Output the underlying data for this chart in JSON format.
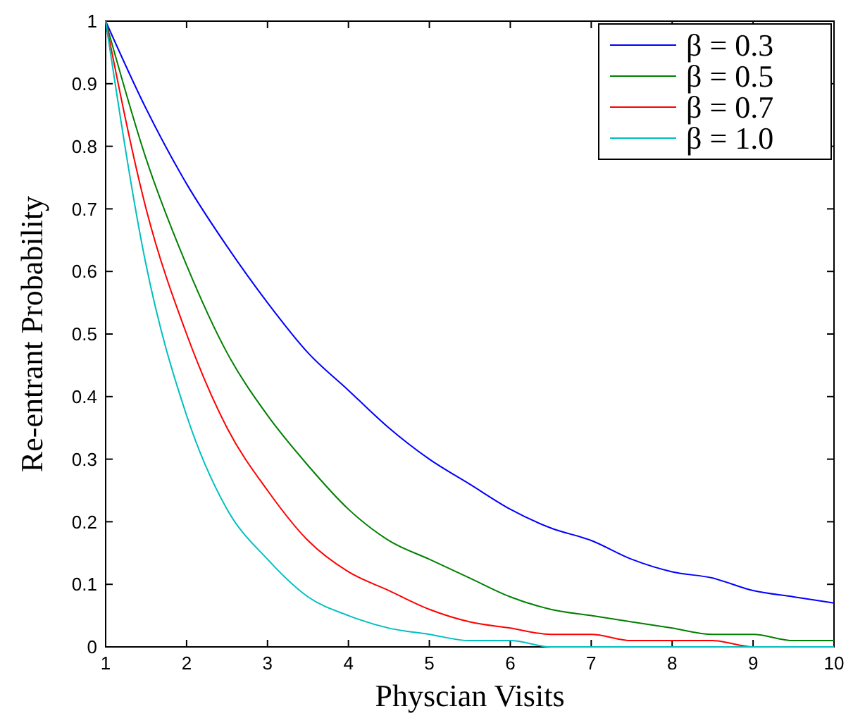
{
  "chart_data": {
    "type": "line",
    "xlabel": "Physcian Visits",
    "ylabel": "Re-entrant Probability",
    "x": [
      1,
      1.5,
      2,
      2.5,
      3,
      3.5,
      4,
      4.5,
      5,
      5.5,
      6,
      6.5,
      7,
      7.5,
      8,
      8.5,
      9,
      9.5,
      10
    ],
    "series": [
      {
        "name": "β = 0.3",
        "color": "#0000ff",
        "values": [
          1,
          0.86,
          0.74,
          0.64,
          0.55,
          0.47,
          0.41,
          0.35,
          0.3,
          0.26,
          0.22,
          0.19,
          0.17,
          0.14,
          0.12,
          0.11,
          0.09,
          0.08,
          0.07
        ]
      },
      {
        "name": "β = 0.5",
        "color": "#008000",
        "values": [
          1,
          0.78,
          0.61,
          0.47,
          0.37,
          0.29,
          0.22,
          0.17,
          0.14,
          0.11,
          0.08,
          0.06,
          0.05,
          0.04,
          0.03,
          0.02,
          0.02,
          0.01,
          0.01
        ]
      },
      {
        "name": "β = 0.7",
        "color": "#ff0000",
        "values": [
          1,
          0.7,
          0.5,
          0.35,
          0.25,
          0.17,
          0.12,
          0.09,
          0.06,
          0.04,
          0.03,
          0.02,
          0.02,
          0.01,
          0.01,
          0.01,
          0,
          0,
          0
        ]
      },
      {
        "name": "β = 1.0",
        "color": "#00bfbf",
        "values": [
          1,
          0.61,
          0.37,
          0.22,
          0.14,
          0.08,
          0.05,
          0.03,
          0.02,
          0.01,
          0.01,
          0,
          0,
          0,
          0,
          0,
          0,
          0,
          0
        ]
      }
    ],
    "xlim": [
      1,
      10
    ],
    "xticks": [
      1,
      2,
      3,
      4,
      5,
      6,
      7,
      8,
      9,
      10
    ],
    "ylim": [
      0,
      1
    ],
    "yticks": [
      0,
      0.1,
      0.2,
      0.3,
      0.4,
      0.5,
      0.6,
      0.7,
      0.8,
      0.9,
      1
    ],
    "grid": false,
    "legend": "top right",
    "marker": "none",
    "line_style": "solid"
  }
}
